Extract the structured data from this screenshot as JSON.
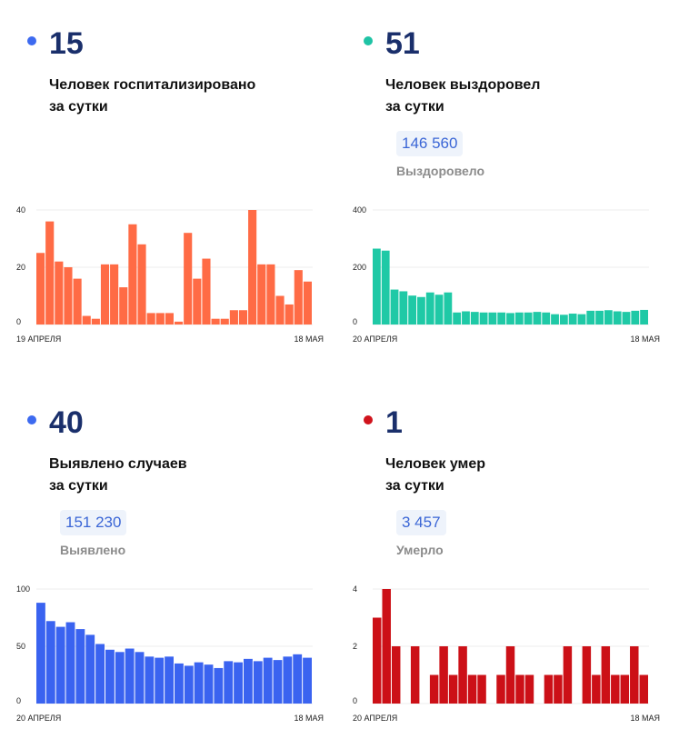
{
  "panels": [
    {
      "id": "hospitalized",
      "number": "15",
      "label_line1": "Человек госпитализировано",
      "label_line2": "за сутки",
      "badge": "",
      "sublabel": "",
      "dot_color": "#3d6af0",
      "bar_color": "#ff6b45"
    },
    {
      "id": "recovered",
      "number": "51",
      "label_line1": "Человек выздоровел",
      "label_line2": "за сутки",
      "badge": "146 560",
      "sublabel": "Выздоровело",
      "dot_color": "#1fc3a5",
      "bar_color": "#1fc9a6"
    },
    {
      "id": "cases",
      "number": "40",
      "label_line1": "Выявлено случаев",
      "label_line2": "за сутки",
      "badge": "151 230",
      "sublabel": "Выявлено",
      "dot_color": "#3d6af0",
      "bar_color": "#3a63f0"
    },
    {
      "id": "deaths",
      "number": "1",
      "label_line1": "Человек умер",
      "label_line2": "за сутки",
      "badge": "3 457",
      "sublabel": "Умерло",
      "dot_color": "#d0131c",
      "bar_color": "#cc1017"
    }
  ],
  "chart_data": [
    {
      "type": "bar",
      "title": "",
      "x_start_label": "19 АПРЕЛЯ",
      "x_end_label": "18 МАЯ",
      "ylim": [
        0,
        40
      ],
      "yticks": [
        0,
        20,
        40
      ],
      "grid": true,
      "values": [
        25,
        36,
        22,
        20,
        16,
        3,
        2,
        21,
        21,
        13,
        35,
        28,
        4,
        4,
        4,
        1,
        32,
        16,
        23,
        2,
        2,
        5,
        5,
        40,
        21,
        21,
        10,
        7,
        19,
        15
      ]
    },
    {
      "type": "bar",
      "title": "",
      "x_start_label": "20 АПРЕЛЯ",
      "x_end_label": "18 МАЯ",
      "ylim": [
        0,
        400
      ],
      "yticks": [
        0,
        200,
        400
      ],
      "grid": true,
      "values": [
        265,
        258,
        122,
        116,
        101,
        96,
        112,
        104,
        112,
        42,
        46,
        44,
        42,
        42,
        42,
        40,
        42,
        42,
        44,
        42,
        36,
        34,
        38,
        36,
        48,
        48,
        50,
        46,
        44,
        48,
        51
      ]
    },
    {
      "type": "bar",
      "title": "",
      "x_start_label": "20 АПРЕЛЯ",
      "x_end_label": "18 МАЯ",
      "ylim": [
        0,
        100
      ],
      "yticks": [
        0,
        50,
        100
      ],
      "grid": true,
      "values": [
        88,
        72,
        67,
        71,
        65,
        60,
        52,
        47,
        45,
        48,
        45,
        41,
        40,
        41,
        35,
        33,
        36,
        34,
        31,
        37,
        36,
        39,
        37,
        40,
        38,
        41,
        43,
        40
      ]
    },
    {
      "type": "bar",
      "title": "",
      "x_start_label": "20 АПРЕЛЯ",
      "x_end_label": "18 МАЯ",
      "ylim": [
        0,
        4
      ],
      "yticks": [
        0,
        2,
        4
      ],
      "grid": true,
      "values": [
        3,
        4,
        2,
        0,
        2,
        0,
        1,
        2,
        1,
        2,
        1,
        1,
        0,
        1,
        2,
        1,
        1,
        0,
        1,
        1,
        2,
        0,
        2,
        1,
        2,
        1,
        1,
        2,
        1
      ]
    }
  ]
}
